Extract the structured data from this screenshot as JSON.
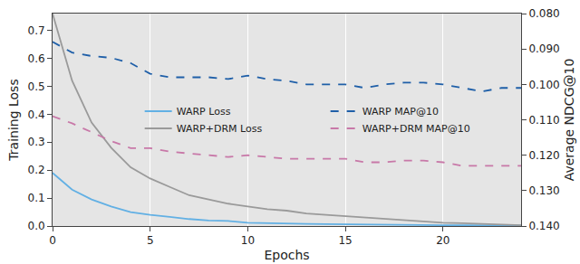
{
  "chart_data": {
    "type": "line",
    "x": [
      0,
      1,
      2,
      3,
      4,
      5,
      6,
      7,
      8,
      9,
      10,
      11,
      12,
      13,
      14,
      15,
      16,
      17,
      18,
      19,
      20,
      21,
      22,
      23,
      24
    ],
    "xlim": [
      0,
      24
    ],
    "xticks": [
      0,
      5,
      10,
      15,
      20
    ],
    "x_label": "Epochs",
    "y_label": "Training Loss",
    "y2_label": "Average NDCG@10",
    "ylim": [
      0,
      0.76
    ],
    "yticks": [
      {
        "value": 0,
        "label": "0.0"
      },
      0.1,
      0.2,
      0.3,
      0.4,
      0.5,
      0.6,
      0.7
    ],
    "y2lim": [
      0.14,
      0.08
    ],
    "y2ticks": [
      {
        "value": 0.08,
        "label": "0.080"
      },
      {
        "value": 0.09,
        "label": "0.090"
      },
      {
        "value": 0.1,
        "label": "0.100"
      },
      {
        "value": 0.11,
        "label": "0.110"
      },
      {
        "value": 0.12,
        "label": "0.120"
      },
      {
        "value": 0.13,
        "label": "0.130"
      },
      {
        "value": 0.14,
        "label": "0.140"
      }
    ],
    "grid": true,
    "legend": "right",
    "series": [
      {
        "name": "WARP Loss",
        "color": "#62b0e4",
        "line_style": "solid",
        "values": [
          0.19,
          0.13,
          0.095,
          0.07,
          0.05,
          0.04,
          0.033,
          0.025,
          0.02,
          0.018,
          0.012,
          0.01,
          0.01,
          0.008,
          0.007,
          0.006,
          0.005,
          0.005,
          0.004,
          0.004,
          0.003,
          0.003,
          0.002,
          0.002,
          0.002
        ]
      },
      {
        "name": "WARP+DRM Loss",
        "color": "#9a9a9a",
        "line_style": "solid",
        "values": [
          0.76,
          0.52,
          0.37,
          0.28,
          0.21,
          0.17,
          0.14,
          0.11,
          0.095,
          0.08,
          0.07,
          0.06,
          0.055,
          0.045,
          0.04,
          0.035,
          0.03,
          0.025,
          0.02,
          0.015,
          0.012,
          0.01,
          0.008,
          0.005,
          0.003
        ]
      },
      {
        "name": "WARP MAP@10",
        "color": "#1f5fa8",
        "line_style": "dashed",
        "axis": "y2",
        "values": [
          0.088,
          0.091,
          0.092,
          0.0925,
          0.094,
          0.097,
          0.098,
          0.098,
          0.098,
          0.0985,
          0.0975,
          0.0985,
          0.099,
          0.1,
          0.1,
          0.1,
          0.101,
          0.1,
          0.0995,
          0.0995,
          0.1,
          0.101,
          0.102,
          0.101,
          0.101
        ]
      },
      {
        "name": "WARP+DRM MAP@10",
        "color": "#c878a8",
        "line_style": "dashed",
        "axis": "y2",
        "values": [
          0.109,
          0.111,
          0.1135,
          0.116,
          0.118,
          0.118,
          0.119,
          0.1195,
          0.12,
          0.1205,
          0.12,
          0.1205,
          0.121,
          0.121,
          0.121,
          0.121,
          0.122,
          0.122,
          0.1215,
          0.1215,
          0.122,
          0.123,
          0.123,
          0.123,
          0.123
        ]
      }
    ]
  }
}
